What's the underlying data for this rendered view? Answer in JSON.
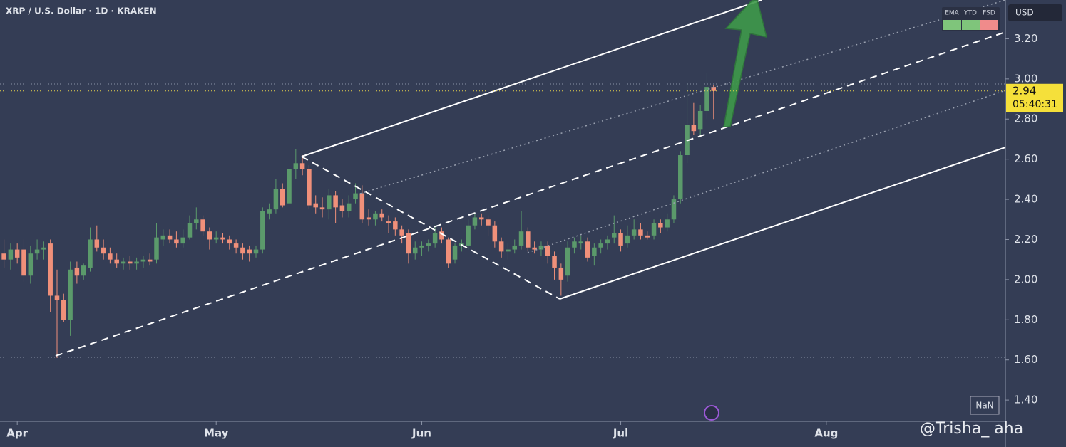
{
  "chart_data": {
    "type": "candlestick",
    "title": "XRP / U.S. Dollar · 1D · KRAKEN",
    "currency": "USD",
    "badges": [
      "EMA",
      "YTD",
      "FSD"
    ],
    "na_label": "NaN",
    "watermark": "@Trisha_  aha",
    "last_price": 2.94,
    "countdown": "05:40:31",
    "up_color": "#5b9a6b",
    "down_color": "#f0907a",
    "ylim": [
      1.294,
      3.393
    ],
    "yticks": [
      {
        "value": 1.4,
        "label": "1.40"
      },
      {
        "value": 1.6,
        "label": "1.60"
      },
      {
        "value": 1.8,
        "label": "1.80"
      },
      {
        "value": 2.0,
        "label": "2.00"
      },
      {
        "value": 2.2,
        "label": "2.20"
      },
      {
        "value": 2.4,
        "label": "2.40"
      },
      {
        "value": 2.6,
        "label": "2.60"
      },
      {
        "value": 2.8,
        "label": "2.80"
      },
      {
        "value": 3.0,
        "label": "3.00"
      },
      {
        "value": 3.2,
        "label": "3.20"
      }
    ],
    "xlim": [
      -0.6,
      151
    ],
    "xticks": [
      {
        "value": 2,
        "label": "Apr"
      },
      {
        "value": 32,
        "label": "May"
      },
      {
        "value": 63,
        "label": "Jun"
      },
      {
        "value": 93,
        "label": "Jul"
      },
      {
        "value": 124,
        "label": "Aug"
      }
    ],
    "ohlc": [
      [
        2.13,
        2.2,
        2.06,
        2.1
      ],
      [
        2.1,
        2.18,
        2.05,
        2.15
      ],
      [
        2.15,
        2.18,
        2.08,
        2.11
      ],
      [
        2.15,
        2.2,
        1.99,
        2.02
      ],
      [
        2.02,
        2.17,
        1.98,
        2.13
      ],
      [
        2.13,
        2.2,
        2.1,
        2.15
      ],
      [
        2.15,
        2.19,
        2.1,
        2.16
      ],
      [
        2.18,
        2.2,
        1.84,
        1.92
      ],
      [
        1.92,
        2.05,
        1.61,
        1.9
      ],
      [
        1.9,
        1.93,
        1.79,
        1.8
      ],
      [
        1.8,
        2.09,
        1.72,
        2.05
      ],
      [
        2.06,
        2.09,
        1.98,
        2.02
      ],
      [
        2.02,
        2.08,
        2.0,
        2.07
      ],
      [
        2.06,
        2.26,
        2.04,
        2.2
      ],
      [
        2.2,
        2.27,
        2.14,
        2.16
      ],
      [
        2.16,
        2.2,
        2.1,
        2.13
      ],
      [
        2.13,
        2.16,
        2.08,
        2.1
      ],
      [
        2.1,
        2.13,
        2.06,
        2.08
      ],
      [
        2.08,
        2.11,
        2.05,
        2.09
      ],
      [
        2.09,
        2.12,
        2.05,
        2.08
      ],
      [
        2.08,
        2.11,
        2.05,
        2.09
      ],
      [
        2.09,
        2.12,
        2.06,
        2.1
      ],
      [
        2.1,
        2.13,
        2.07,
        2.09
      ],
      [
        2.1,
        2.28,
        2.08,
        2.21
      ],
      [
        2.2,
        2.25,
        2.17,
        2.22
      ],
      [
        2.22,
        2.25,
        2.18,
        2.2
      ],
      [
        2.2,
        2.24,
        2.16,
        2.18
      ],
      [
        2.18,
        2.25,
        2.16,
        2.21
      ],
      [
        2.21,
        2.32,
        2.2,
        2.28
      ],
      [
        2.28,
        2.36,
        2.25,
        2.3
      ],
      [
        2.3,
        2.32,
        2.22,
        2.24
      ],
      [
        2.24,
        2.26,
        2.15,
        2.2
      ],
      [
        2.2,
        2.24,
        2.18,
        2.21
      ],
      [
        2.21,
        2.23,
        2.18,
        2.2
      ],
      [
        2.2,
        2.22,
        2.15,
        2.18
      ],
      [
        2.18,
        2.2,
        2.13,
        2.16
      ],
      [
        2.16,
        2.18,
        2.1,
        2.13
      ],
      [
        2.15,
        2.17,
        2.09,
        2.13
      ],
      [
        2.13,
        2.17,
        2.11,
        2.15
      ],
      [
        2.15,
        2.36,
        2.13,
        2.34
      ],
      [
        2.33,
        2.38,
        2.3,
        2.35
      ],
      [
        2.35,
        2.5,
        2.33,
        2.45
      ],
      [
        2.45,
        2.48,
        2.36,
        2.37
      ],
      [
        2.38,
        2.62,
        2.36,
        2.55
      ],
      [
        2.55,
        2.65,
        2.5,
        2.58
      ],
      [
        2.58,
        2.62,
        2.52,
        2.55
      ],
      [
        2.55,
        2.57,
        2.35,
        2.37
      ],
      [
        2.38,
        2.42,
        2.33,
        2.36
      ],
      [
        2.36,
        2.41,
        2.31,
        2.35
      ],
      [
        2.35,
        2.45,
        2.3,
        2.42
      ],
      [
        2.42,
        2.44,
        2.28,
        2.36
      ],
      [
        2.37,
        2.4,
        2.31,
        2.34
      ],
      [
        2.34,
        2.42,
        2.31,
        2.38
      ],
      [
        2.4,
        2.48,
        2.38,
        2.43
      ],
      [
        2.43,
        2.47,
        2.28,
        2.3
      ],
      [
        2.31,
        2.35,
        2.27,
        2.3
      ],
      [
        2.3,
        2.34,
        2.27,
        2.33
      ],
      [
        2.33,
        2.35,
        2.29,
        2.31
      ],
      [
        2.29,
        2.32,
        2.23,
        2.28
      ],
      [
        2.29,
        2.31,
        2.22,
        2.25
      ],
      [
        2.25,
        2.27,
        2.18,
        2.22
      ],
      [
        2.23,
        2.25,
        2.08,
        2.13
      ],
      [
        2.13,
        2.19,
        2.1,
        2.16
      ],
      [
        2.16,
        2.19,
        2.12,
        2.17
      ],
      [
        2.17,
        2.2,
        2.14,
        2.18
      ],
      [
        2.18,
        2.27,
        2.16,
        2.23
      ],
      [
        2.24,
        2.26,
        2.18,
        2.2
      ],
      [
        2.2,
        2.21,
        2.06,
        2.08
      ],
      [
        2.1,
        2.18,
        2.08,
        2.17
      ],
      [
        2.17,
        2.2,
        2.14,
        2.18
      ],
      [
        2.17,
        2.3,
        2.15,
        2.27
      ],
      [
        2.27,
        2.33,
        2.25,
        2.31
      ],
      [
        2.31,
        2.33,
        2.27,
        2.3
      ],
      [
        2.3,
        2.32,
        2.22,
        2.27
      ],
      [
        2.27,
        2.29,
        2.16,
        2.19
      ],
      [
        2.19,
        2.21,
        2.11,
        2.14
      ],
      [
        2.14,
        2.18,
        2.1,
        2.15
      ],
      [
        2.15,
        2.2,
        2.13,
        2.17
      ],
      [
        2.17,
        2.34,
        2.15,
        2.24
      ],
      [
        2.24,
        2.26,
        2.14,
        2.16
      ],
      [
        2.16,
        2.19,
        2.13,
        2.15
      ],
      [
        2.15,
        2.19,
        2.12,
        2.17
      ],
      [
        2.17,
        2.19,
        2.08,
        2.12
      ],
      [
        2.12,
        2.14,
        2.0,
        2.06
      ],
      [
        2.06,
        2.08,
        1.92,
        2.0
      ],
      [
        2.02,
        2.19,
        1.99,
        2.16
      ],
      [
        2.16,
        2.21,
        2.13,
        2.19
      ],
      [
        2.18,
        2.22,
        2.15,
        2.19
      ],
      [
        2.19,
        2.21,
        2.09,
        2.11
      ],
      [
        2.12,
        2.18,
        2.07,
        2.16
      ],
      [
        2.16,
        2.2,
        2.13,
        2.18
      ],
      [
        2.18,
        2.22,
        2.15,
        2.2
      ],
      [
        2.21,
        2.32,
        2.18,
        2.23
      ],
      [
        2.23,
        2.25,
        2.14,
        2.17
      ],
      [
        2.18,
        2.27,
        2.16,
        2.22
      ],
      [
        2.22,
        2.3,
        2.2,
        2.25
      ],
      [
        2.25,
        2.28,
        2.2,
        2.22
      ],
      [
        2.22,
        2.24,
        2.2,
        2.21
      ],
      [
        2.22,
        2.3,
        2.2,
        2.28
      ],
      [
        2.28,
        2.3,
        2.23,
        2.26
      ],
      [
        2.26,
        2.33,
        2.24,
        2.3
      ],
      [
        2.3,
        2.42,
        2.28,
        2.4
      ],
      [
        2.4,
        2.64,
        2.38,
        2.62
      ],
      [
        2.62,
        2.98,
        2.58,
        2.77
      ],
      [
        2.77,
        2.88,
        2.72,
        2.74
      ],
      [
        2.75,
        2.87,
        2.72,
        2.84
      ],
      [
        2.84,
        3.03,
        2.8,
        2.96
      ],
      [
        2.96,
        2.97,
        2.8,
        2.94
      ]
    ]
  }
}
